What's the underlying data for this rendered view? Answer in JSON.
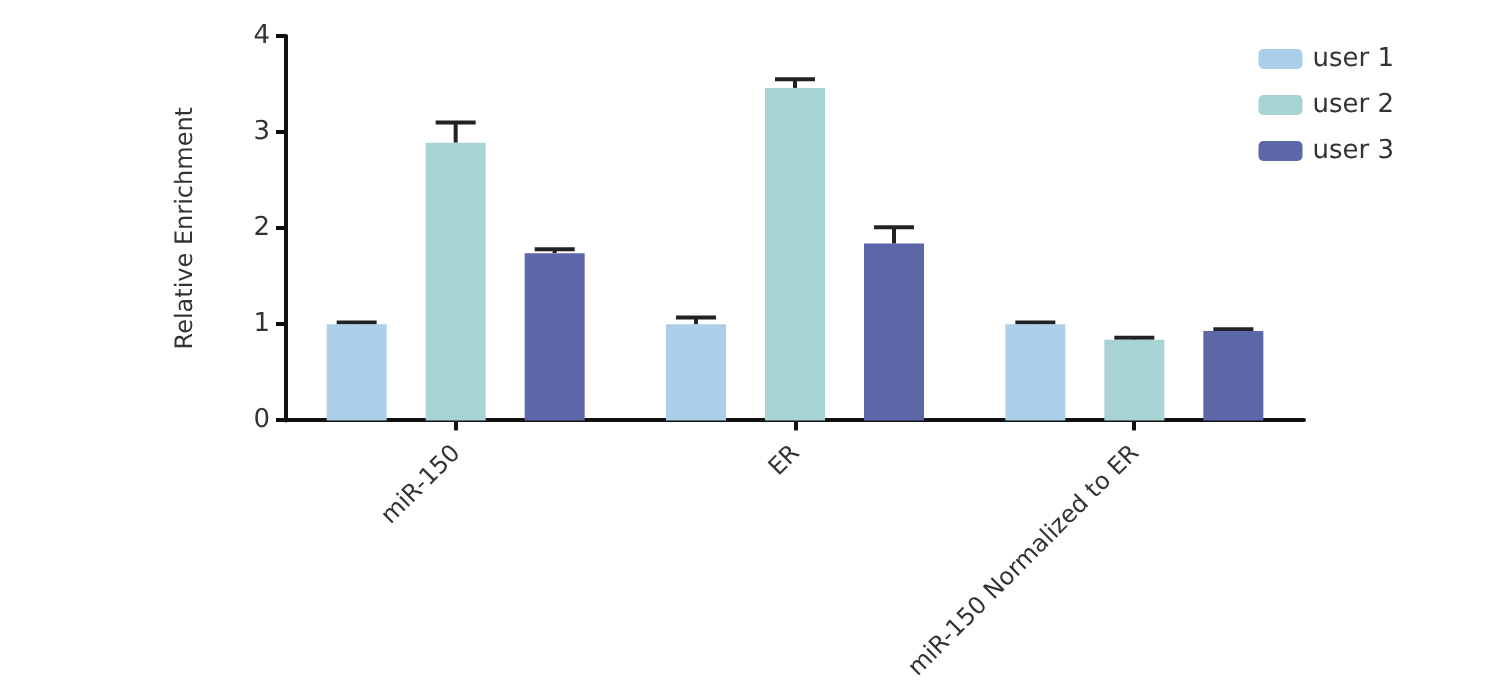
{
  "chart_data": {
    "type": "bar",
    "ylabel": "Relative Enrichment",
    "categories": [
      "miR-150",
      "ER",
      "miR-150 Normalized to ER"
    ],
    "series": [
      {
        "name": "user 1",
        "color": "#abcfe8",
        "values": [
          1.0,
          1.0,
          1.0
        ],
        "errors": [
          [
            1.0,
            1.02
          ],
          [
            1.0,
            1.07
          ],
          [
            1.0,
            1.02
          ]
        ]
      },
      {
        "name": "user 2",
        "color": "#a8d3d5",
        "values": [
          2.89,
          3.46,
          0.84
        ],
        "errors": [
          [
            2.89,
            3.1
          ],
          [
            3.46,
            3.55
          ],
          [
            0.84,
            0.86
          ]
        ]
      },
      {
        "name": "user 3",
        "color": "#5d66a6",
        "values": [
          1.74,
          1.84,
          0.93
        ],
        "errors": [
          [
            1.74,
            1.78
          ],
          [
            1.84,
            2.01
          ],
          [
            0.93,
            0.95
          ]
        ]
      }
    ],
    "ylim": [
      0,
      4
    ],
    "yticks": [
      0,
      1,
      2,
      3,
      4
    ],
    "grid": false,
    "legend": "top right"
  }
}
